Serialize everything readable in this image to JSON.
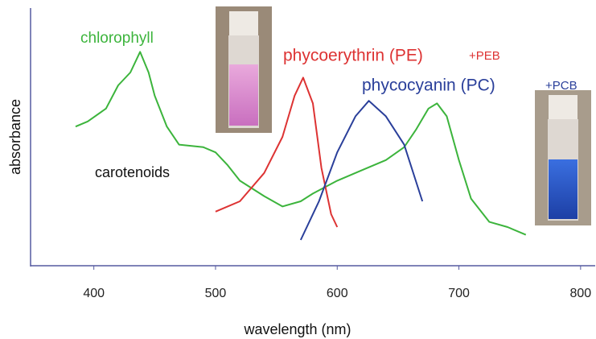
{
  "chart_data": {
    "type": "line",
    "xlabel": "wavelength (nm)",
    "ylabel": "absorbance",
    "xlim": [
      348,
      812
    ],
    "xticks": [
      400,
      500,
      600,
      700,
      800
    ],
    "ylim": [
      0,
      1
    ],
    "series": [
      {
        "name": "chlorophyll",
        "color": "#3cb43c",
        "x": [
          385,
          395,
          410,
          420,
          430,
          438,
          445,
          450,
          460,
          470,
          490,
          500,
          510,
          520,
          540,
          555,
          570,
          580,
          600,
          620,
          640,
          655,
          665,
          675,
          682,
          690,
          700,
          710,
          725,
          740,
          755
        ],
        "values": [
          0.54,
          0.56,
          0.61,
          0.7,
          0.75,
          0.83,
          0.75,
          0.66,
          0.54,
          0.47,
          0.46,
          0.44,
          0.39,
          0.33,
          0.27,
          0.23,
          0.25,
          0.28,
          0.33,
          0.37,
          0.41,
          0.46,
          0.53,
          0.61,
          0.63,
          0.58,
          0.41,
          0.26,
          0.17,
          0.15,
          0.12
        ]
      },
      {
        "name": "phycoerythrin (PE)",
        "color": "#dd3333",
        "x": [
          500,
          520,
          540,
          555,
          565,
          572,
          580,
          587,
          595,
          600
        ],
        "values": [
          0.21,
          0.25,
          0.36,
          0.5,
          0.66,
          0.73,
          0.63,
          0.38,
          0.2,
          0.15
        ]
      },
      {
        "name": "phycocyanin (PC)",
        "color": "#2a3f9a",
        "x": [
          570,
          585,
          600,
          615,
          626,
          640,
          655,
          670
        ],
        "values": [
          0.1,
          0.25,
          0.44,
          0.58,
          0.64,
          0.58,
          0.47,
          0.25
        ]
      }
    ],
    "annotations": [
      "carotenoids",
      "+PEB",
      "+PCB"
    ]
  }
}
